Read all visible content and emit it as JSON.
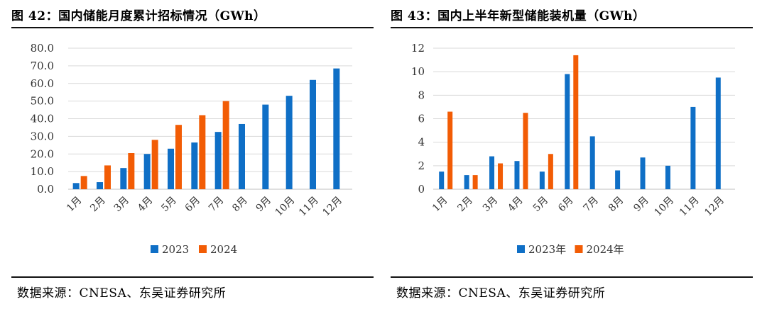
{
  "colors": {
    "series_2023": "#0f6fc6",
    "series_2024": "#f25c05",
    "grid": "#d9d9d9",
    "axis": "#bfbfbf"
  },
  "left": {
    "figure_title": "图 42：国内储能月度累计招标情况（GWh）",
    "source": "数据来源：CNESA、东吴证券研究所"
  },
  "right": {
    "figure_title": "图 43：国内上半年新型储能装机量（GWh）",
    "source": "数据来源：CNESA、东吴证券研究所"
  },
  "chart_data": [
    {
      "type": "bar",
      "title": "图 42：国内储能月度累计招标情况（GWh）",
      "categories": [
        "1月",
        "2月",
        "3月",
        "4月",
        "5月",
        "6月",
        "7月",
        "8月",
        "9月",
        "10月",
        "11月",
        "12月"
      ],
      "series": [
        {
          "name": "2023",
          "values": [
            3.5,
            4.0,
            12.0,
            20.0,
            23.0,
            26.5,
            32.5,
            37.0,
            48.0,
            53.0,
            62.0,
            68.5
          ]
        },
        {
          "name": "2024",
          "values": [
            7.5,
            13.5,
            20.5,
            28.0,
            36.5,
            42.0,
            50.0,
            null,
            null,
            null,
            null,
            null
          ]
        }
      ],
      "yticks": [
        "0.0",
        "10.0",
        "20.0",
        "30.0",
        "40.0",
        "50.0",
        "60.0",
        "70.0",
        "80.0"
      ],
      "ylim": [
        0,
        80
      ],
      "xlabel": "",
      "ylabel": "",
      "legend_position": "bottom"
    },
    {
      "type": "bar",
      "title": "图 43：国内上半年新型储能装机量（GWh）",
      "categories": [
        "1月",
        "2月",
        "3月",
        "4月",
        "5月",
        "6月",
        "7月",
        "8月",
        "9月",
        "10月",
        "11月",
        "12月"
      ],
      "series": [
        {
          "name": "2023年",
          "values": [
            1.5,
            1.2,
            2.8,
            2.4,
            1.5,
            9.8,
            4.5,
            1.6,
            2.7,
            2.0,
            7.0,
            9.5
          ]
        },
        {
          "name": "2024年",
          "values": [
            6.6,
            1.2,
            2.2,
            6.5,
            3.0,
            11.4,
            null,
            null,
            null,
            null,
            null,
            null
          ]
        }
      ],
      "yticks": [
        "0",
        "2",
        "4",
        "6",
        "8",
        "10",
        "12"
      ],
      "ylim": [
        0,
        12
      ],
      "xlabel": "",
      "ylabel": "",
      "legend_position": "bottom"
    }
  ]
}
